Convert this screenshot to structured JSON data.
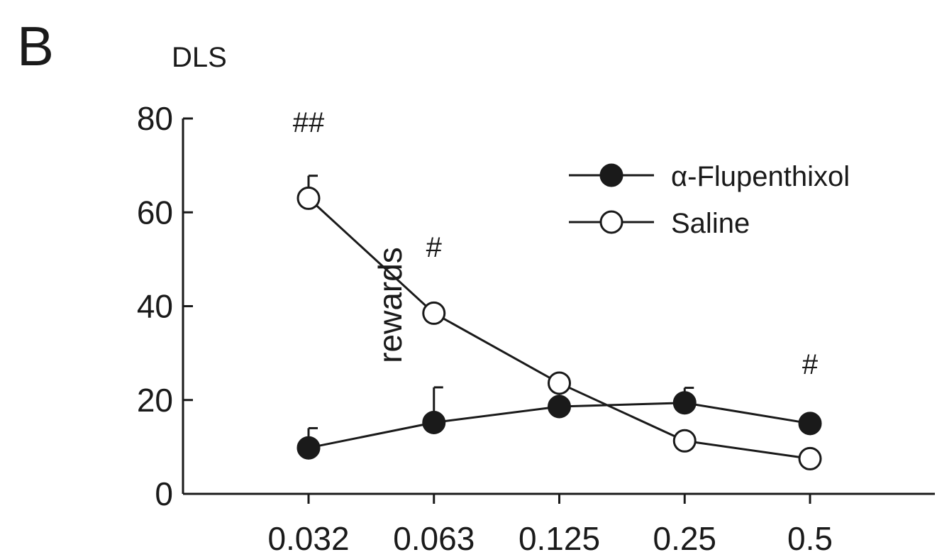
{
  "panel_label": "B",
  "chart_data": {
    "type": "line",
    "title": "DLS",
    "xlabel": "",
    "ylabel": "rewards",
    "categories": [
      "0.032",
      "0.063",
      "0.125",
      "0.25",
      "0.5"
    ],
    "ylim": [
      0,
      80
    ],
    "yticks": [
      0,
      20,
      40,
      60,
      80
    ],
    "grid": false,
    "legend_position": "top-right",
    "series": [
      {
        "name": "α-Flupenthixol",
        "marker": "filled-circle",
        "color": "#1a1a1a",
        "values": [
          9.8,
          15.2,
          18.6,
          19.4,
          15.0
        ],
        "error": [
          4.2,
          7.5,
          0,
          3.2,
          0
        ]
      },
      {
        "name": "Saline",
        "marker": "open-circle",
        "color": "#1a1a1a",
        "values": [
          63.0,
          38.5,
          23.6,
          11.3,
          7.5
        ],
        "error": [
          4.8,
          0,
          0,
          0,
          0
        ]
      }
    ],
    "annotations": [
      {
        "text": "##",
        "category": "0.032"
      },
      {
        "text": "#",
        "category": "0.063"
      },
      {
        "text": "#",
        "category": "0.5"
      }
    ]
  }
}
